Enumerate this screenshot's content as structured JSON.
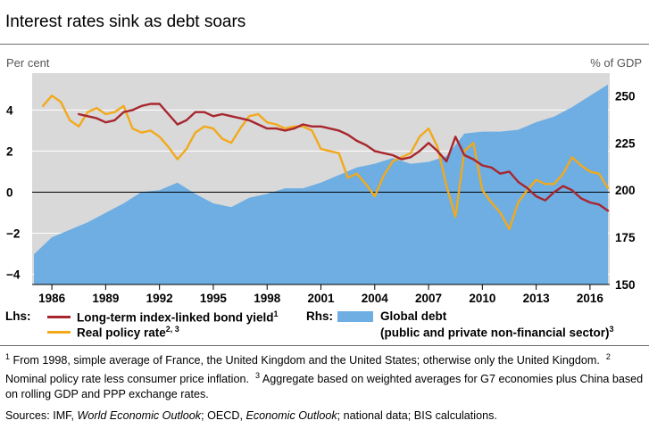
{
  "title": "Interest rates sink as debt soars",
  "chart_data": {
    "type": "line",
    "title": "Interest rates sink as debt soars",
    "left_axis": {
      "unit_label": "Per cent",
      "ylim": [
        -4.5,
        5.8
      ],
      "ticks": [
        "4",
        "2",
        "0",
        "−2",
        "−4"
      ],
      "tick_values": [
        4,
        2,
        0,
        -2,
        -4
      ]
    },
    "right_axis": {
      "unit_label": "% of GDP",
      "ylim": [
        150,
        262
      ],
      "ticks": [
        "250",
        "225",
        "200",
        "175",
        "150"
      ],
      "tick_values": [
        250,
        225,
        200,
        175,
        150
      ]
    },
    "x_axis": {
      "xlim": [
        1984.9,
        2017.1
      ],
      "ticks": [
        "1986",
        "1989",
        "1992",
        "1995",
        "1998",
        "2001",
        "2004",
        "2007",
        "2010",
        "2013",
        "2016"
      ],
      "tick_values": [
        1986,
        1989,
        1992,
        1995,
        1998,
        2001,
        2004,
        2007,
        2010,
        2013,
        2016
      ]
    },
    "grid": "horizontal",
    "legend": {
      "lhs_label": "Lhs:",
      "rhs_label": "Rhs:",
      "items": [
        {
          "label": "Long-term index-linked bond yield",
          "sup": "1",
          "color": "#a8262e",
          "axis": "left"
        },
        {
          "label": "Real policy rate",
          "sup": "2, 3",
          "color": "#f2a91c",
          "axis": "left"
        },
        {
          "label": "Global debt",
          "label2": "(public and private non-financial sector)",
          "sup": "3",
          "color": "#6eaee3",
          "axis": "right"
        }
      ]
    },
    "series": [
      {
        "name": "Long-term index-linked bond yield",
        "axis": "left",
        "color": "#a8262e",
        "x": [
          1987.5,
          1988,
          1988.5,
          1989,
          1989.5,
          1990,
          1990.5,
          1991,
          1991.5,
          1992,
          1992.5,
          1993,
          1993.5,
          1994,
          1994.5,
          1995,
          1995.5,
          1996,
          1996.5,
          1997,
          1997.5,
          1998,
          1998.5,
          1999,
          1999.5,
          2000,
          2000.5,
          2001,
          2001.5,
          2002,
          2002.5,
          2003,
          2003.5,
          2004,
          2004.5,
          2005,
          2005.5,
          2006,
          2006.5,
          2007,
          2007.5,
          2008,
          2008.5,
          2009,
          2009.5,
          2010,
          2010.5,
          2011,
          2011.5,
          2012,
          2012.5,
          2013,
          2013.5,
          2014,
          2014.5,
          2015,
          2015.5,
          2016,
          2016.5,
          2017
        ],
        "y": [
          3.8,
          3.7,
          3.6,
          3.4,
          3.5,
          3.9,
          4.0,
          4.2,
          4.3,
          4.3,
          3.8,
          3.3,
          3.5,
          3.9,
          3.9,
          3.7,
          3.8,
          3.7,
          3.6,
          3.5,
          3.3,
          3.1,
          3.1,
          3.0,
          3.1,
          3.3,
          3.2,
          3.2,
          3.1,
          3.0,
          2.8,
          2.5,
          2.3,
          2.0,
          1.9,
          1.8,
          1.6,
          1.7,
          2.0,
          2.4,
          2.0,
          1.5,
          2.7,
          1.8,
          1.6,
          1.3,
          1.2,
          0.9,
          1.0,
          0.5,
          0.2,
          -0.2,
          -0.4,
          0.0,
          0.3,
          0.1,
          -0.3,
          -0.5,
          -0.6,
          -0.9
        ]
      },
      {
        "name": "Real policy rate",
        "axis": "left",
        "color": "#f2a91c",
        "x": [
          1985.5,
          1986,
          1986.5,
          1987,
          1987.5,
          1988,
          1988.5,
          1989,
          1989.5,
          1990,
          1990.5,
          1991,
          1991.5,
          1992,
          1992.5,
          1993,
          1993.5,
          1994,
          1994.5,
          1995,
          1995.5,
          1996,
          1996.5,
          1997,
          1997.5,
          1998,
          1998.5,
          1999,
          1999.5,
          2000,
          2000.5,
          2001,
          2001.5,
          2002,
          2002.5,
          2003,
          2003.5,
          2004,
          2004.5,
          2005,
          2005.5,
          2006,
          2006.5,
          2007,
          2007.5,
          2008,
          2008.5,
          2009,
          2009.5,
          2010,
          2010.5,
          2011,
          2011.5,
          2012,
          2012.5,
          2013,
          2013.5,
          2014,
          2014.5,
          2015,
          2015.5,
          2016,
          2016.5,
          2017
        ],
        "y": [
          4.2,
          4.7,
          4.4,
          3.5,
          3.2,
          3.9,
          4.1,
          3.8,
          3.9,
          4.2,
          3.1,
          2.9,
          3.0,
          2.7,
          2.2,
          1.6,
          2.1,
          2.9,
          3.2,
          3.1,
          2.6,
          2.4,
          3.1,
          3.7,
          3.8,
          3.4,
          3.3,
          3.1,
          3.2,
          3.2,
          3.0,
          2.1,
          2.0,
          1.9,
          0.7,
          0.9,
          0.4,
          -0.2,
          0.8,
          1.5,
          1.7,
          1.9,
          2.7,
          3.1,
          2.2,
          0.3,
          -1.2,
          2.0,
          2.4,
          0.1,
          -0.5,
          -1.0,
          -1.8,
          -0.5,
          0.1,
          0.6,
          0.4,
          0.4,
          0.9,
          1.7,
          1.3,
          1.0,
          0.9,
          0.2
        ]
      },
      {
        "name": "Global debt",
        "axis": "right",
        "color": "#6eaee3",
        "x": [
          1985,
          1986,
          1987,
          1988,
          1989,
          1990,
          1991,
          1992,
          1993,
          1994,
          1995,
          1996,
          1997,
          1998,
          1999,
          2000,
          2001,
          2002,
          2003,
          2004,
          2005,
          2006,
          2007,
          2008,
          2009,
          2010,
          2011,
          2012,
          2013,
          2014,
          2015,
          2016,
          2017
        ],
        "y": [
          166,
          175,
          179,
          183,
          188,
          193,
          199,
          200,
          204,
          198,
          193,
          191,
          196,
          198,
          201,
          201,
          204,
          208,
          212,
          214,
          217,
          214,
          215,
          218,
          230,
          231,
          231,
          232,
          236,
          239,
          244,
          250,
          256
        ]
      }
    ]
  },
  "footnotes": [
    {
      "num": "1",
      "text": "From 1998, simple average of France, the United Kingdom and the United States; otherwise only the United Kingdom."
    },
    {
      "num": "2",
      "text": "Nominal policy rate less consumer price inflation."
    },
    {
      "num": "3",
      "text": "Aggregate based on weighted averages for G7 economies plus China based on rolling GDP and PPP exchange rates."
    }
  ],
  "sources": {
    "prefix": "Sources: IMF, ",
    "pub1": "World Economic Outlook",
    "mid": "; OECD, ",
    "pub2": "Economic Outlook",
    "suffix": "; national data; BIS calculations."
  }
}
